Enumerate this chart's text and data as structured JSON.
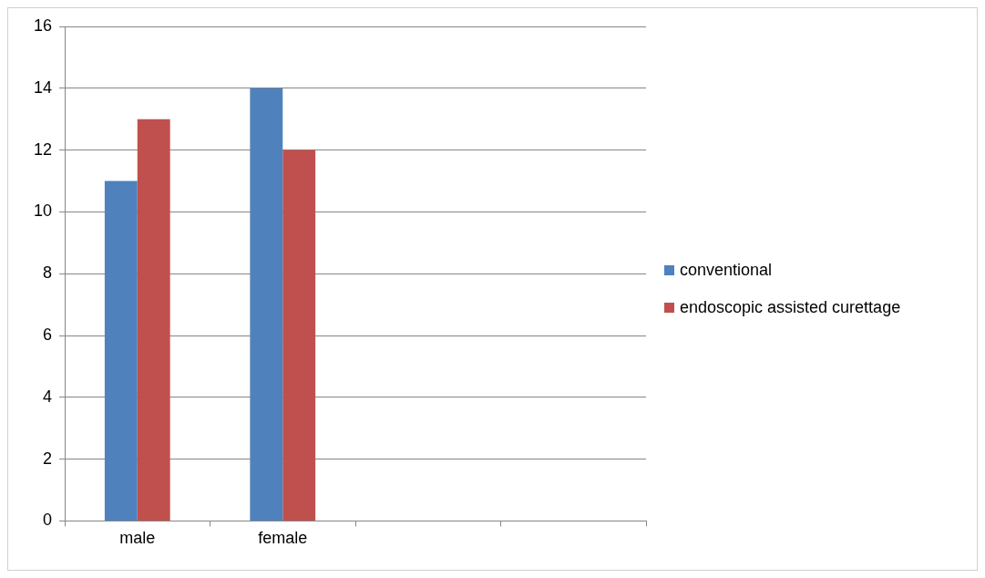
{
  "chart_data": {
    "type": "bar",
    "categories": [
      "male",
      "female",
      null,
      null
    ],
    "series": [
      {
        "name": "conventional",
        "color": "#4f81bd",
        "values": [
          11,
          14,
          null,
          null
        ]
      },
      {
        "name": "endoscopic assisted curettage",
        "color": "#c0504d",
        "values": [
          13,
          12,
          null,
          null
        ]
      }
    ],
    "ylim": [
      0,
      16
    ],
    "yticks": [
      0,
      2,
      4,
      6,
      8,
      10,
      12,
      14,
      16
    ],
    "grid": "y",
    "legend": "right"
  }
}
